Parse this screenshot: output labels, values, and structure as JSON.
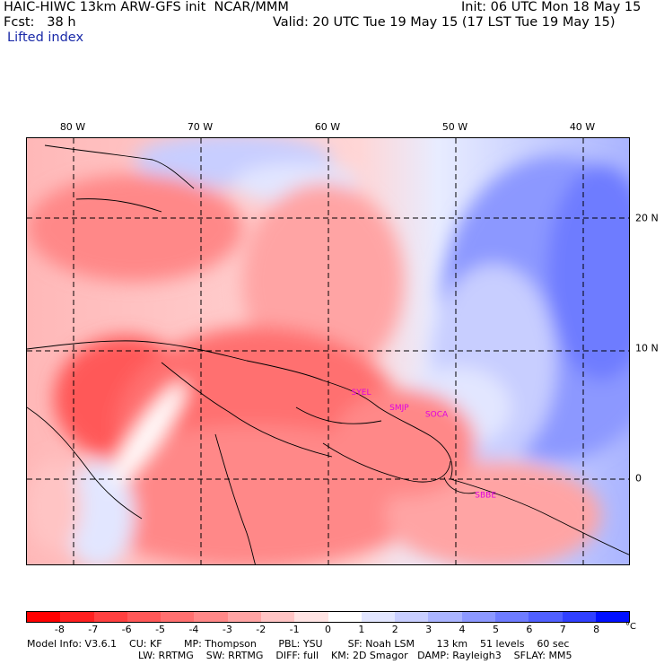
{
  "header": {
    "model_line": "HAIC-HIWC 13km ARW-GFS init  NCAR/MMM",
    "init": "Init: 06 UTC Mon 18 May 15",
    "fcst": "Fcst:   38 h",
    "valid": "Valid: 20 UTC Tue 19 May 15 (17 LST Tue 19 May 15)",
    "field": "Lifted index"
  },
  "map": {
    "lon_labels": [
      {
        "text": "80 W",
        "lon": -80
      },
      {
        "text": "70 W",
        "lon": -70
      },
      {
        "text": "60 W",
        "lon": -60
      },
      {
        "text": "50 W",
        "lon": -50
      },
      {
        "text": "40 W",
        "lon": -40
      }
    ],
    "lat_labels": [
      {
        "text": "20 N",
        "lat": 20
      },
      {
        "text": "10 N",
        "lat": 10
      },
      {
        "text": "0",
        "lat": 0
      }
    ],
    "stations": [
      {
        "text": "SYEL",
        "lon": -58.2,
        "lat": 6.5
      },
      {
        "text": "SMJP",
        "lon": -55.2,
        "lat": 5.3
      },
      {
        "text": "SOCA",
        "lon": -52.4,
        "lat": 4.8
      },
      {
        "text": "SBBE",
        "lon": -48.5,
        "lat": -1.4
      }
    ],
    "station_color": "#e000e0"
  },
  "colorbar": {
    "unit": "°C",
    "ticks": [
      "-8",
      "-7",
      "-6",
      "-5",
      "-4",
      "-3",
      "-2",
      "-1",
      "0",
      "1",
      "2",
      "3",
      "4",
      "5",
      "6",
      "7",
      "8"
    ],
    "colors": [
      "#ff0000",
      "#ff2020",
      "#ff4040",
      "#ff5858",
      "#ff7070",
      "#ff8888",
      "#ffa4a4",
      "#ffc4c4",
      "#ffe4e4",
      "#ffffff",
      "#e2e6ff",
      "#c8ceff",
      "#aab4ff",
      "#8c98ff",
      "#6e7cff",
      "#5060ff",
      "#3040ff",
      "#0010ff"
    ]
  },
  "footer": {
    "line1": "Model Info: V3.6.1    CU: KF       MP: Thompson       PBL: YSU        SF: Noah LSM       13 km    51 levels    60 sec",
    "line2": "LW: RRTMG    SW: RRTMG    DIFF: full    KM: 2D Smagor   DAMP: Rayleigh3    SFLAY: MM5"
  }
}
